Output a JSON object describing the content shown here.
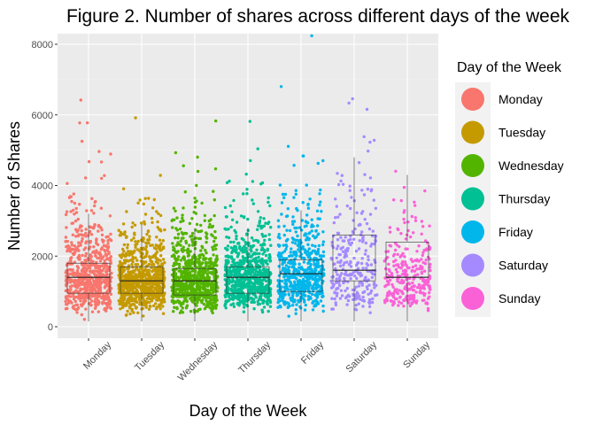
{
  "chart_data": {
    "type": "scatter",
    "subtype": "jittered-strip-with-boxplot",
    "title": "Figure 2. Number of shares across different days of the week",
    "xlabel": "Day of the Week",
    "ylabel": "Number of Shares",
    "ylim": [
      0,
      8400
    ],
    "yticks": [
      0,
      2000,
      4000,
      6000,
      8000
    ],
    "categories": [
      "Monday",
      "Tuesday",
      "Wednesday",
      "Thursday",
      "Friday",
      "Saturday",
      "Sunday"
    ],
    "grid": true,
    "legend": {
      "title": "Day of the Week",
      "placement": "right",
      "entries": [
        "Monday",
        "Tuesday",
        "Wednesday",
        "Thursday",
        "Friday",
        "Saturday",
        "Sunday"
      ]
    },
    "colors": [
      "#F8766D",
      "#C49A00",
      "#53B400",
      "#00C094",
      "#00B6EB",
      "#A58AFF",
      "#FB61D7"
    ],
    "point_counts": [
      700,
      780,
      760,
      760,
      600,
      280,
      300
    ],
    "boxes": [
      {
        "name": "Monday",
        "q1": 950,
        "median": 1400,
        "q3": 1800,
        "whisker_high": 3200
      },
      {
        "name": "Tuesday",
        "q1": 950,
        "median": 1300,
        "q3": 1700,
        "whisker_high": 2900
      },
      {
        "name": "Wednesday",
        "q1": 900,
        "median": 1300,
        "q3": 1650,
        "whisker_high": 2800
      },
      {
        "name": "Thursday",
        "q1": 950,
        "median": 1400,
        "q3": 1700,
        "whisker_high": 2800
      },
      {
        "name": "Friday",
        "q1": 1000,
        "median": 1500,
        "q3": 1900,
        "whisker_high": 3300
      },
      {
        "name": "Saturday",
        "q1": 1300,
        "median": 1600,
        "q3": 2600,
        "whisker_high": 4800
      },
      {
        "name": "Sunday",
        "q1": 1400,
        "median": 1400,
        "q3": 2400,
        "whisker_high": 4300
      }
    ]
  }
}
